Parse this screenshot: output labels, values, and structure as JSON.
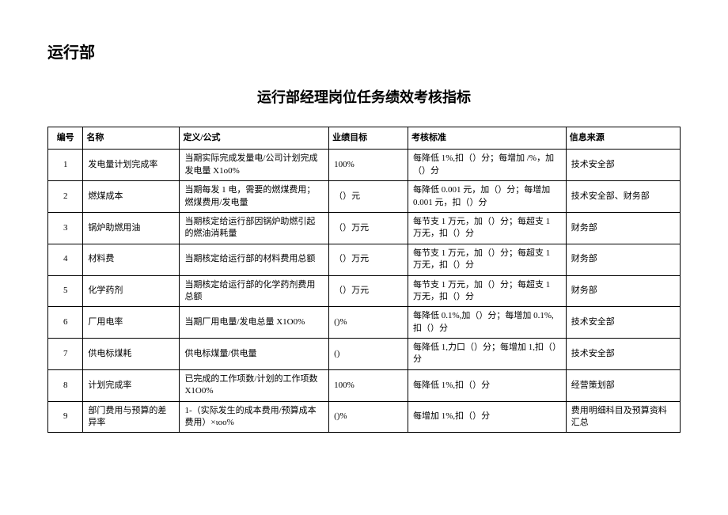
{
  "dept_title": "运行部",
  "sub_title": "运行部经理岗位任务绩效考核指标",
  "table": {
    "columns": [
      "编号",
      "名称",
      "定义/公式",
      "业绩目标",
      "考核标准",
      "信息来源"
    ],
    "rows": [
      {
        "num": "1",
        "name": "发电量计划完成率",
        "formula": "当期实际完成发量电/公司计划完成发电量 X1o0%",
        "target": "100%",
        "standard": "每降低 1%,扣（）分；每增加 /%，加（）分",
        "source": "技术安全部"
      },
      {
        "num": "2",
        "name": "燃煤成本",
        "formula": "当期每发 1 电，需要的燃煤费用；燃煤费用/发电量",
        "target": "（）元",
        "standard": "每降低 0.001 元，加（）分；每增加 0.001 元，扣（）分",
        "source": "技术安全部、财务部"
      },
      {
        "num": "3",
        "name": "锅炉助燃用油",
        "formula": "当期核定给运行部因锅炉助燃引起的燃油消耗量",
        "target": "（）万元",
        "standard": "每节支 1 万元，加（）分；每超支 1 万无，扣（）分",
        "source": "财务部"
      },
      {
        "num": "4",
        "name": "材料费",
        "formula": "当期核定给运行部的材料费用总额",
        "target": "（）万元",
        "standard": "每节支 1 万元，加（）分；每超支 1 万无，扣（）分",
        "source": "财务部"
      },
      {
        "num": "5",
        "name": "化学药剂",
        "formula": "当期核定给运行部的化学药剂费用总额",
        "target": "（）万元",
        "standard": "每节支 1 万元，加（）分；每超支 1 万无，扣（）分",
        "source": "财务部"
      },
      {
        "num": "6",
        "name": "厂用电率",
        "formula": "当期厂用电量/发电总量 X1O0%",
        "target": "()%",
        "standard": "每降低 0.1%,加（）分；每增加 0.1%,扣（）分",
        "source": "技术安全部"
      },
      {
        "num": "7",
        "name": "供电标煤耗",
        "formula": "供电标煤量/供电量",
        "target": "()",
        "standard": "每降低 1,力口（）分；每增加 1,扣（）分",
        "source": "技术安全部"
      },
      {
        "num": "8",
        "name": "计划完成率",
        "formula": "已完成的工作项数/计划的工作项数 X1O0%",
        "target": "100%",
        "standard": "每降低 1%,扣（）分",
        "source": "经营策划部"
      },
      {
        "num": "9",
        "name": "部门费用与预算的差异率",
        "formula": "1-（实际发生的成本费用/预算成本费用）×ιoo%",
        "target": "()%",
        "standard": "每增加 1%,扣（）分",
        "source": "费用明细科目及预算资料汇总"
      }
    ]
  }
}
